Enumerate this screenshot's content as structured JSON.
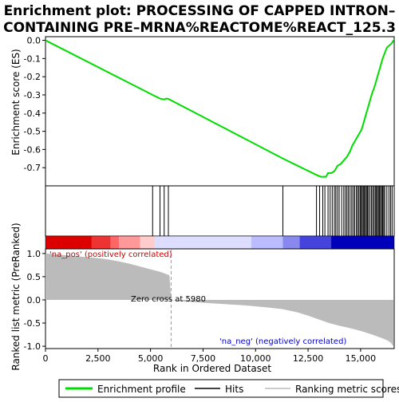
{
  "chart_data": {
    "type": "line",
    "title": "Enrichment plot: PROCESSING OF CAPPED INTRON-CONTAINING PRE-MRNA%REACTOME%REACT_125.3",
    "title_lines": [
      "Enrichment plot: PROCESSING OF CAPPED INTRON–",
      "CONTAINING PRE–MRNA%REACTOME%REACT_125.3"
    ],
    "xlabel": "Rank in Ordered Dataset",
    "xlim": [
      0,
      16600
    ],
    "x_ticks": [
      0,
      2500,
      5000,
      7500,
      10000,
      12500,
      15000
    ],
    "x_tick_labels": [
      "0",
      "2,500",
      "5,000",
      "7,500",
      "10,000",
      "12,500",
      "15,000"
    ],
    "es_panel": {
      "ylabel": "Enrichment score (ES)",
      "ylim": [
        -0.8,
        0.02
      ],
      "y_ticks": [
        0.0,
        -0.1,
        -0.2,
        -0.3,
        -0.4,
        -0.5,
        -0.6,
        -0.7
      ],
      "y_tick_labels": [
        "0.0",
        "-0.1",
        "-0.2",
        "-0.3",
        "-0.4",
        "-0.5",
        "-0.6",
        "-0.7"
      ],
      "series": [
        {
          "name": "Enrichment profile",
          "color": "#00dd00",
          "x": [
            0,
            5100,
            5450,
            5650,
            5750,
            5850,
            11300,
            12900,
            13100,
            13350,
            13450,
            13600,
            13750,
            13900,
            14050,
            14200,
            14350,
            14500,
            14600,
            14750,
            14900,
            15050,
            15150,
            15250,
            15350,
            15450,
            15550,
            15650,
            15750,
            15850,
            15950,
            16050,
            16150,
            16250,
            16350,
            16450,
            16520,
            16560
          ],
          "y": [
            0.0,
            -0.3,
            -0.32,
            -0.325,
            -0.32,
            -0.322,
            -0.65,
            -0.74,
            -0.75,
            -0.75,
            -0.73,
            -0.73,
            -0.72,
            -0.69,
            -0.68,
            -0.66,
            -0.64,
            -0.61,
            -0.58,
            -0.55,
            -0.52,
            -0.49,
            -0.45,
            -0.41,
            -0.37,
            -0.33,
            -0.29,
            -0.26,
            -0.22,
            -0.18,
            -0.14,
            -0.1,
            -0.07,
            -0.04,
            -0.03,
            -0.02,
            -0.01,
            0.0
          ]
        }
      ]
    },
    "hits": {
      "name": "Hits",
      "positions": [
        5100,
        5450,
        5650,
        5850,
        11300,
        12900,
        13050,
        13200,
        13300,
        13450,
        13550,
        13650,
        13750,
        13820,
        13900,
        13980,
        14100,
        14200,
        14280,
        14350,
        14420,
        14500,
        14580,
        14650,
        14720,
        14800,
        14860,
        14920,
        14980,
        15030,
        15080,
        15130,
        15180,
        15230,
        15280,
        15330,
        15380,
        15450,
        15520,
        15580,
        15640,
        15700,
        15750,
        15800,
        15850,
        15900,
        15950,
        16000,
        16050,
        16100,
        16150,
        16250,
        16350,
        16430,
        16500
      ]
    },
    "ranking_bar": {
      "colors": [
        "#dd0000",
        "#ee3333",
        "#ff6666",
        "#ff9999",
        "#ffcccc",
        "#ddddff",
        "#bbbbff",
        "#8888ee",
        "#4444dd",
        "#0000bb"
      ],
      "segments": [
        2200,
        3100,
        3500,
        4500,
        5200,
        9800,
        11300,
        12100,
        13600,
        16600
      ]
    },
    "metric_panel": {
      "ylabel": "Ranked list metric (PreRanked)",
      "ylim": [
        -1.05,
        1.1
      ],
      "y_ticks": [
        1.0,
        0.5,
        0.0,
        -0.5,
        -1.0
      ],
      "y_tick_labels": [
        "1.0",
        "0.5",
        "0.0",
        "-0.5",
        "-1.0"
      ],
      "zero_cross": 5980,
      "zero_cross_label": "Zero cross at 5980",
      "pos_label": "'na_pos' (positively correlated)",
      "neg_label": "'na_neg' (negatively correlated)",
      "x": [
        0,
        500,
        1000,
        1500,
        2000,
        2500,
        3000,
        3500,
        4000,
        4500,
        5000,
        5500,
        5900,
        5980,
        6500,
        7500,
        8500,
        9500,
        10500,
        11300,
        12000,
        12500,
        13000,
        13500,
        14000,
        14500,
        15000,
        15500,
        15800,
        16100,
        16300,
        16450,
        16560
      ],
      "values": [
        1.0,
        0.98,
        0.96,
        0.94,
        0.92,
        0.9,
        0.87,
        0.83,
        0.78,
        0.72,
        0.66,
        0.6,
        0.53,
        0.0,
        -0.03,
        -0.06,
        -0.09,
        -0.12,
        -0.16,
        -0.2,
        -0.27,
        -0.34,
        -0.42,
        -0.5,
        -0.56,
        -0.61,
        -0.67,
        -0.74,
        -0.79,
        -0.84,
        -0.88,
        -0.93,
        -1.0
      ]
    },
    "legend": {
      "items": [
        {
          "label": "Enrichment profile",
          "color": "#00dd00"
        },
        {
          "label": "Hits",
          "color": "#000000"
        },
        {
          "label": "Ranking metric scores",
          "color": "#bbbbbb"
        }
      ]
    }
  }
}
